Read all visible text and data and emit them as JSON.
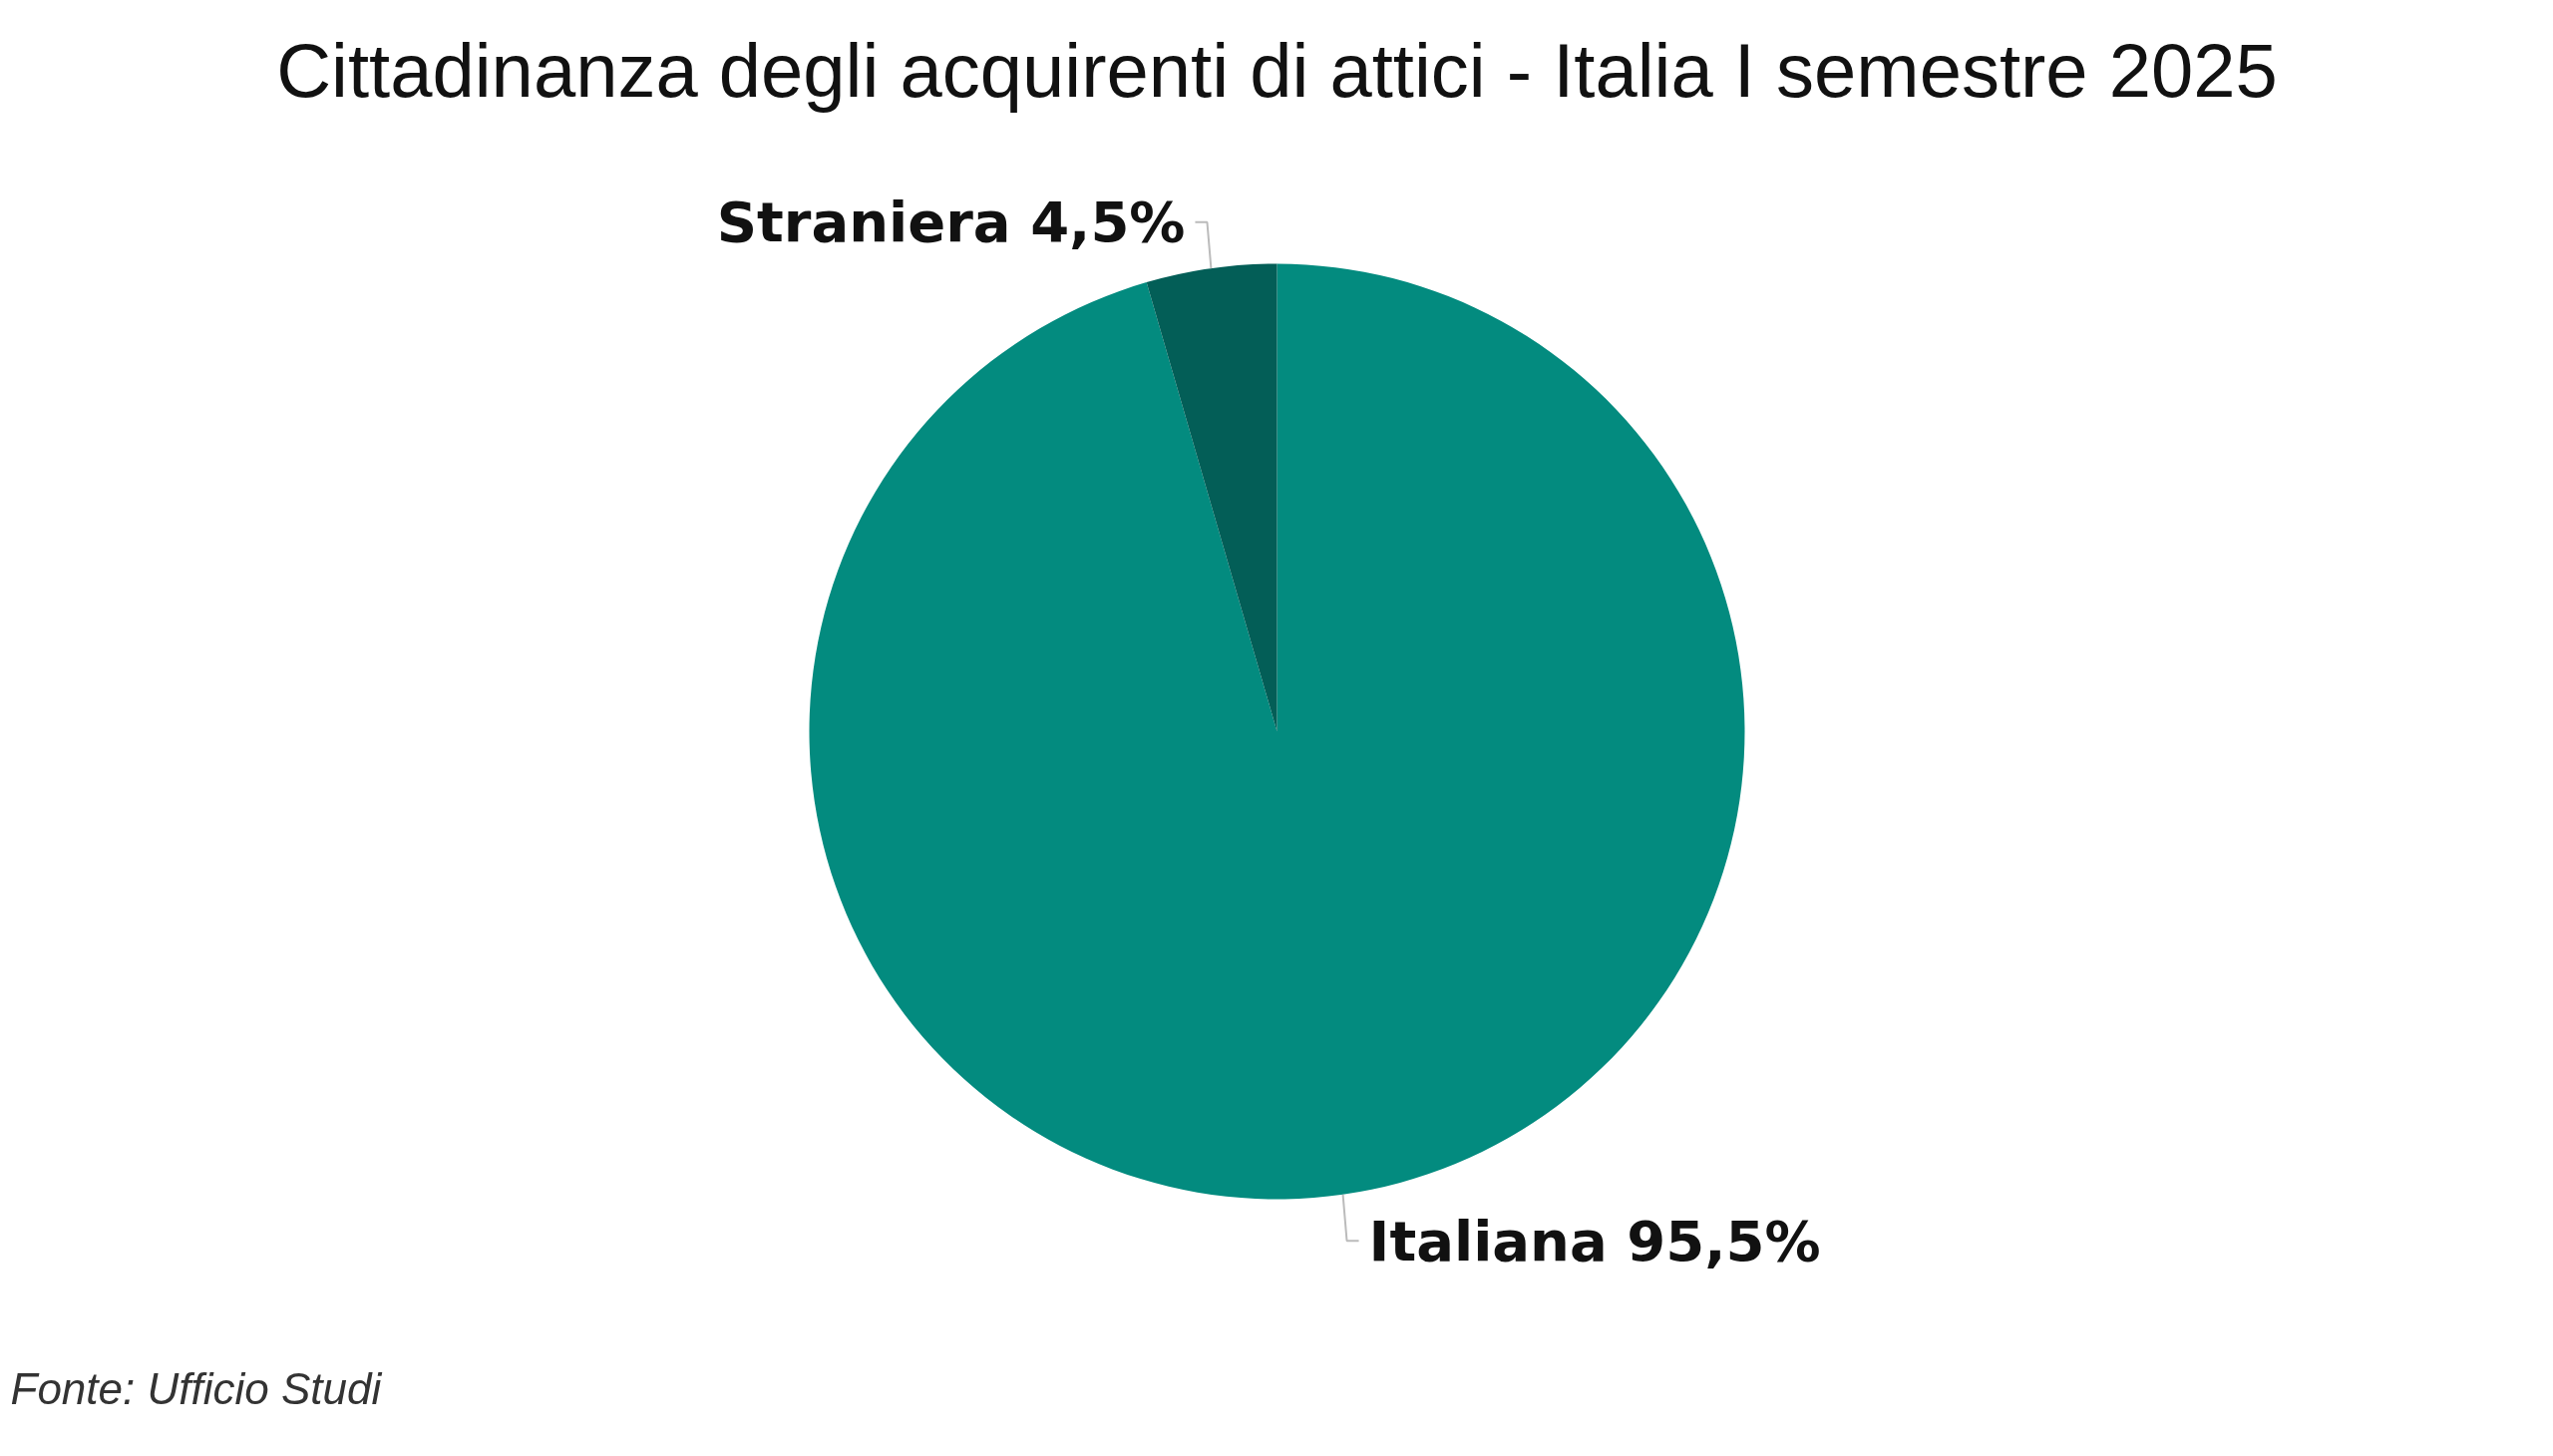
{
  "chart_data": {
    "type": "pie",
    "title": "Cittadinanza degli acquirenti di attici - Italia I semestre 2025",
    "categories": [
      "Italiana",
      "Straniera"
    ],
    "values": [
      95.5,
      4.5
    ],
    "colors": [
      "#038b7f",
      "#035e57"
    ],
    "value_labels": [
      "95,5%",
      "4,5%"
    ],
    "annotations": [
      "Fonte: Ufficio Studi"
    ]
  }
}
